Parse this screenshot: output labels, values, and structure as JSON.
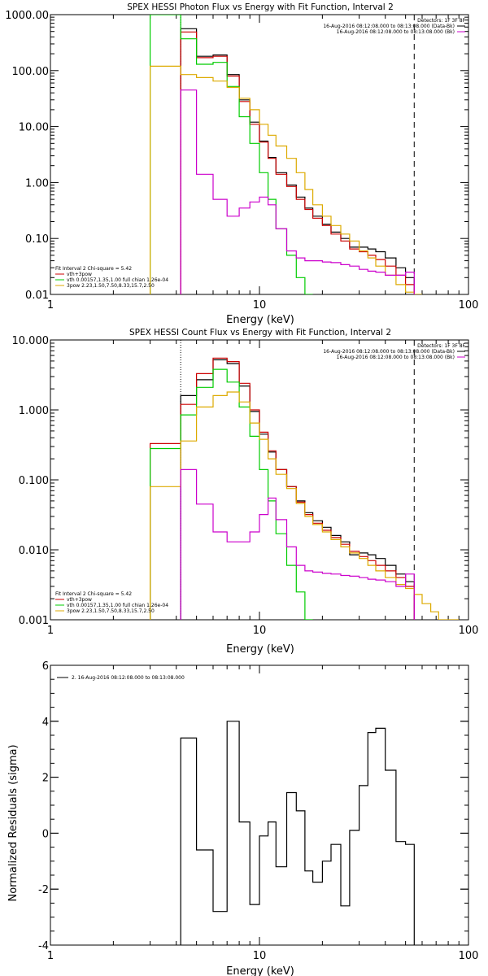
{
  "chart_data": [
    {
      "type": "line",
      "title": "SPEX HESSI Photon Flux vs Energy with Fit Function, Interval 2",
      "xlabel": "Energy (keV)",
      "ylabel": "",
      "xscale": "log",
      "yscale": "log",
      "xlim": [
        1,
        100
      ],
      "ylim": [
        0.01,
        1000
      ],
      "xticks": [
        {
          "v": 1,
          "label": "1"
        },
        {
          "v": 10,
          "label": "10"
        },
        {
          "v": 100,
          "label": "100"
        }
      ],
      "yticks": [
        {
          "v": 0.01,
          "label": "0.01"
        },
        {
          "v": 0.1,
          "label": "0.10"
        },
        {
          "v": 1,
          "label": "1.00"
        },
        {
          "v": 10,
          "label": "10.00"
        },
        {
          "v": 100,
          "label": "100.00"
        },
        {
          "v": 1000,
          "label": "1000.00"
        }
      ],
      "grid": false,
      "vlines": [
        {
          "x": 4.2,
          "style": "dotted"
        },
        {
          "x": 55,
          "style": "dashed"
        }
      ],
      "legend_top": {
        "title": "Detectors: 1F 3F 8F",
        "entries": [
          {
            "text": "16-Aug-2016 08:12:08.000 to 08:13:08.000 (Data-Bk)",
            "color": "#000000"
          },
          {
            "text": "16-Aug-2016 08:12:08.000 to 08:13:08.000 (Bk)",
            "color": "#cc00cc"
          }
        ]
      },
      "legend_bottom": {
        "title": "Fit Interval 2   Chi-square = 5.42",
        "entries": [
          {
            "text": "vth+3pow",
            "color": "#cc0000"
          },
          {
            "text": "vth 0.00157,1.35,1.00  full chian 1.26e-04",
            "color": "#00cc00"
          },
          {
            "text": "3pow 2.23,1.50,7.50,8.33,15.7,2.50",
            "color": "#ddaa00"
          }
        ]
      },
      "edges": [
        3.0,
        4.2,
        5.0,
        6.0,
        7.0,
        8.0,
        9.0,
        10.0,
        11.0,
        12.0,
        13.5,
        15.0,
        16.5,
        18.0,
        20.0,
        22.0,
        24.5,
        27.0,
        30.0,
        33.0,
        36.0,
        40.0,
        45.0,
        50.0,
        55.0,
        60.0,
        66.0,
        72.0
      ],
      "series": [
        {
          "name": "",
          "color": "#000000",
          "values": [
            null,
            560,
            180,
            190,
            85,
            30,
            12,
            5.5,
            2.8,
            1.5,
            0.9,
            0.55,
            0.35,
            0.25,
            0.18,
            0.13,
            0.1,
            0.07,
            0.07,
            0.065,
            0.058,
            0.045,
            0.03,
            0.02,
            null,
            null,
            null
          ]
        },
        {
          "name": "",
          "color": "#cc0000",
          "values": [
            null,
            490,
            170,
            180,
            80,
            28,
            11,
            5.3,
            2.7,
            1.4,
            0.85,
            0.5,
            0.33,
            0.23,
            0.17,
            0.12,
            0.09,
            0.065,
            0.058,
            0.05,
            0.042,
            0.032,
            0.022,
            0.015,
            null,
            null,
            null
          ]
        },
        {
          "name": "",
          "color": "#00cc00",
          "values": [
            1000,
            370,
            130,
            140,
            52,
            15,
            5,
            1.5,
            0.5,
            0.15,
            0.05,
            0.02,
            0.01,
            null,
            null,
            null,
            null,
            null,
            null,
            null,
            null,
            null,
            null,
            null,
            null,
            null,
            null
          ]
        },
        {
          "name": "",
          "color": "#ddaa00",
          "values": [
            120,
            85,
            75,
            65,
            50,
            32,
            20,
            11,
            7,
            4.5,
            2.7,
            1.5,
            0.75,
            0.4,
            0.25,
            0.17,
            0.12,
            0.09,
            0.06,
            0.045,
            0.032,
            0.022,
            0.015,
            0.011,
            0.009,
            null,
            null
          ]
        },
        {
          "name": "",
          "color": "#cc00cc",
          "values": [
            null,
            45,
            1.4,
            0.5,
            0.25,
            0.35,
            0.45,
            0.55,
            0.4,
            0.15,
            0.06,
            0.045,
            0.04,
            0.04,
            0.038,
            0.037,
            0.034,
            0.032,
            0.028,
            0.026,
            0.025,
            0.022,
            0.022,
            0.025,
            null,
            null,
            null
          ]
        }
      ]
    },
    {
      "type": "line",
      "title": "SPEX HESSI Count Flux vs Energy with Fit Function, Interval 2",
      "xlabel": "Energy (keV)",
      "ylabel": "",
      "xscale": "log",
      "yscale": "log",
      "xlim": [
        1,
        100
      ],
      "ylim": [
        0.001,
        10
      ],
      "xticks": [
        {
          "v": 1,
          "label": "1"
        },
        {
          "v": 10,
          "label": "10"
        },
        {
          "v": 100,
          "label": "100"
        }
      ],
      "yticks": [
        {
          "v": 0.001,
          "label": "0.001"
        },
        {
          "v": 0.01,
          "label": "0.010"
        },
        {
          "v": 0.1,
          "label": "0.100"
        },
        {
          "v": 1,
          "label": "1.000"
        },
        {
          "v": 10,
          "label": "10.000"
        }
      ],
      "grid": false,
      "vlines": [
        {
          "x": 4.2,
          "style": "dotted"
        },
        {
          "x": 55,
          "style": "dashed"
        }
      ],
      "legend_top": {
        "title": "Detectors: 1F 3F 8F",
        "entries": [
          {
            "text": "16-Aug-2016 08:12:08.000 to 08:13:08.000 (Data-Bk)",
            "color": "#000000"
          },
          {
            "text": "16-Aug-2016 08:12:08.000 to 08:13:08.000 (Bk)",
            "color": "#cc00cc"
          }
        ]
      },
      "legend_bottom": {
        "title": "Fit Interval 2   Chi-square = 5.42",
        "entries": [
          {
            "text": "vth+3pow",
            "color": "#cc0000"
          },
          {
            "text": "vth 0.00157,1.35,1.00  full chian 1.26e-04",
            "color": "#00cc00"
          },
          {
            "text": "3pow 2.23,1.50,7.50,8.33,15.7,2.50",
            "color": "#ddaa00"
          }
        ]
      },
      "edges": [
        3.0,
        4.2,
        5.0,
        6.0,
        7.0,
        8.0,
        9.0,
        10.0,
        11.0,
        12.0,
        13.5,
        15.0,
        16.5,
        18.0,
        20.0,
        22.0,
        24.5,
        27.0,
        30.0,
        33.0,
        36.0,
        40.0,
        45.0,
        50.0,
        55.0,
        60.0,
        66.0,
        72.0,
        80.0,
        90.0
      ],
      "series": [
        {
          "name": "",
          "color": "#000000",
          "values": [
            null,
            1.6,
            2.7,
            5.2,
            4.6,
            2.2,
            0.95,
            0.45,
            0.25,
            0.14,
            0.08,
            0.05,
            0.034,
            0.026,
            0.021,
            0.016,
            0.013,
            0.0085,
            0.009,
            0.0085,
            0.0075,
            0.006,
            0.0045,
            0.0035,
            null,
            null,
            null,
            null,
            null
          ]
        },
        {
          "name": "",
          "color": "#cc0000",
          "values": [
            0.33,
            1.2,
            3.3,
            5.5,
            4.9,
            2.4,
            1.0,
            0.48,
            0.26,
            0.14,
            0.08,
            0.048,
            0.032,
            0.024,
            0.019,
            0.015,
            0.012,
            0.0095,
            0.008,
            0.007,
            0.006,
            0.005,
            0.004,
            0.003,
            null,
            null,
            null,
            null,
            null
          ]
        },
        {
          "name": "",
          "color": "#00cc00",
          "values": [
            0.28,
            0.85,
            2.1,
            3.8,
            2.5,
            1.1,
            0.42,
            0.14,
            0.05,
            0.017,
            0.006,
            0.0025,
            0.001,
            null,
            null,
            null,
            null,
            null,
            null,
            null,
            null,
            null,
            null,
            null,
            null,
            null,
            null,
            null,
            null
          ]
        },
        {
          "name": "",
          "color": "#ddaa00",
          "values": [
            0.08,
            0.36,
            1.1,
            1.6,
            1.8,
            1.3,
            0.65,
            0.38,
            0.2,
            0.12,
            0.075,
            0.046,
            0.03,
            0.023,
            0.018,
            0.014,
            0.011,
            0.009,
            0.0075,
            0.006,
            0.005,
            0.004,
            0.0032,
            0.0028,
            0.0023,
            0.0017,
            0.0013,
            0.001,
            0.001
          ]
        },
        {
          "name": "",
          "color": "#cc00cc",
          "values": [
            null,
            0.14,
            0.045,
            0.018,
            0.013,
            0.013,
            0.018,
            0.032,
            0.055,
            0.027,
            0.011,
            0.006,
            0.005,
            0.0048,
            0.0046,
            0.0045,
            0.0043,
            0.0042,
            0.004,
            0.0038,
            0.0037,
            0.0035,
            0.003,
            0.0045,
            null,
            null,
            null,
            null,
            null
          ]
        }
      ]
    },
    {
      "type": "line",
      "title": "",
      "xlabel": "Energy (keV)",
      "ylabel": "Normalized Residuals (sigma)",
      "xscale": "log",
      "yscale": "linear",
      "xlim": [
        1,
        100
      ],
      "ylim": [
        -4,
        6
      ],
      "xticks": [
        {
          "v": 1,
          "label": "1"
        },
        {
          "v": 10,
          "label": "10"
        },
        {
          "v": 100,
          "label": "100"
        }
      ],
      "yticks": [
        {
          "v": -4,
          "label": "-4"
        },
        {
          "v": -2,
          "label": "-2"
        },
        {
          "v": 0,
          "label": "0"
        },
        {
          "v": 2,
          "label": "2"
        },
        {
          "v": 4,
          "label": "4"
        },
        {
          "v": 6,
          "label": "6"
        }
      ],
      "grid": false,
      "vlines": [],
      "legend_top": {
        "title": "",
        "entries": [
          {
            "text": "2. 16-Aug-2016 08:12:08.000 to 08:13:08.000",
            "color": "#000000"
          }
        ]
      },
      "legend_bottom": {
        "title": "",
        "entries": []
      },
      "edges": [
        4.2,
        5.0,
        6.0,
        7.0,
        8.0,
        9.0,
        10.0,
        11.0,
        12.0,
        13.5,
        15.0,
        16.5,
        18.0,
        20.0,
        22.0,
        24.5,
        27.0,
        30.0,
        33.0,
        36.0,
        40.0,
        45.0,
        50.0,
        55.0
      ],
      "series": [
        {
          "name": "",
          "color": "#000000",
          "values": [
            3.4,
            -0.6,
            -2.8,
            4.0,
            0.4,
            -2.55,
            -0.1,
            0.4,
            -1.2,
            1.45,
            0.8,
            -1.35,
            -1.75,
            -1.0,
            -0.4,
            -2.6,
            0.1,
            1.7,
            3.6,
            3.75,
            2.25,
            -0.3,
            -0.4
          ]
        }
      ],
      "drop_to_bottom": true
    }
  ]
}
